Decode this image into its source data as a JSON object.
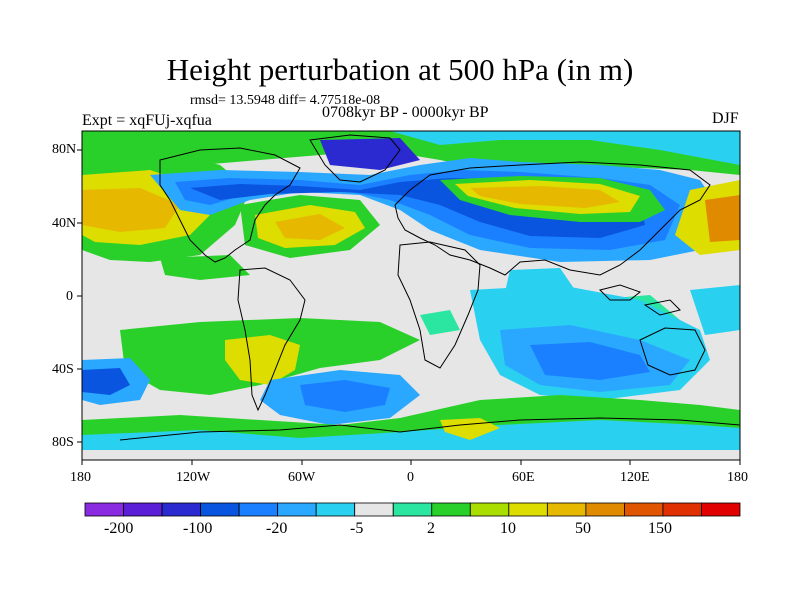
{
  "title": "Height perturbation at 500 hPa (in m)",
  "stats": "rmsd= 13.5948 diff= 4.77518e-08",
  "expt": "Expt = xqFUj-xqfua",
  "period": "0708kyr BP - 0000kyr BP",
  "season": "DJF",
  "lat_labels": [
    "80N",
    "40N",
    "0",
    "40S",
    "80S"
  ],
  "lon_labels": [
    "180",
    "120W",
    "60W",
    "0",
    "60E",
    "120E",
    "180"
  ],
  "colorbar": {
    "colors": [
      "#8a2be2",
      "#5a1fd6",
      "#2a2ad0",
      "#0a55e0",
      "#1a80ff",
      "#2aa8ff",
      "#2ad0f0",
      "#e6e6e6",
      "#2ae6a0",
      "#2ad02a",
      "#aadd00",
      "#dddd00",
      "#e6b800",
      "#e08a00",
      "#e05500",
      "#e03000",
      "#e00000"
    ],
    "labels": [
      "-200",
      "-100",
      "-20",
      "-5",
      "2",
      "10",
      "50",
      "150"
    ]
  }
}
